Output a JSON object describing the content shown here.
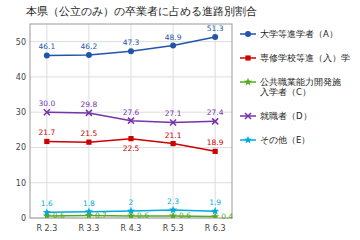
{
  "chart_data": {
    "type": "line",
    "title": "本県（公立のみ）の卒業者に占める進路別割合",
    "categories": [
      "R 2.3",
      "R 3.3",
      "R 4.3",
      "R 5.3",
      "R 6.3"
    ],
    "series": [
      {
        "name": "大学等進学者（A）",
        "color": "#2255aa",
        "marker": "circle",
        "line_style": "solid",
        "values": [
          46.1,
          46.2,
          47.3,
          48.9,
          51.3
        ]
      },
      {
        "name": "専修学校等進（入）学",
        "color": "#cc0000",
        "marker": "square",
        "line_style": "solid",
        "values": [
          21.7,
          21.5,
          22.5,
          21.1,
          18.9
        ]
      },
      {
        "name": "公共職業能力開発施\n入学者（C）",
        "color": "#55aa22",
        "marker": "star",
        "line_style": "solid",
        "values": [
          0.6,
          0.7,
          0.6,
          0.6,
          0.4
        ]
      },
      {
        "name": "就職者（D）",
        "color": "#7733aa",
        "marker": "x",
        "line_style": "solid",
        "values": [
          30.0,
          29.8,
          27.6,
          27.1,
          27.4
        ],
        "value_labels": [
          "30.0",
          "29.8",
          "27.6",
          "27.1",
          "27.4"
        ]
      },
      {
        "name": "その他（E）",
        "color": "#00aadd",
        "marker": "star",
        "line_style": "solid",
        "values": [
          1.6,
          1.8,
          2.0,
          2.3,
          1.9
        ]
      }
    ],
    "ylim": [
      0,
      55
    ],
    "yticks": [
      0,
      10,
      20,
      30,
      40,
      50
    ],
    "grid": true,
    "legend": "right",
    "data_labels": true
  }
}
